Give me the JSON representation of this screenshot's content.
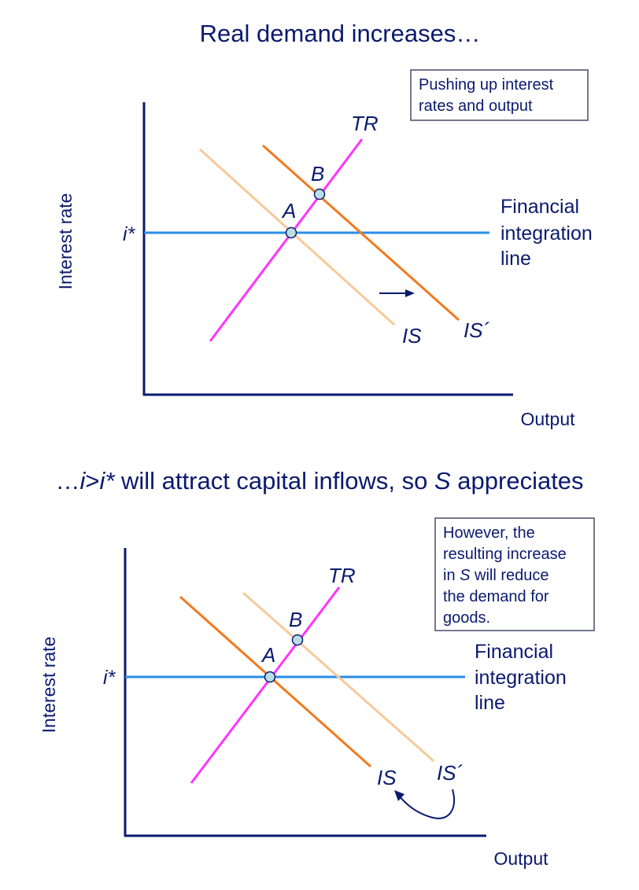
{
  "colors": {
    "text": "#0a1a6e",
    "axis": "#0a1a6e",
    "tr": "#ff33ff",
    "is_old": "#f7c99a",
    "is_new": "#f07a1e",
    "financial": "#2a8de8",
    "point_fill": "#b9dfe5",
    "note_border": "#4a4a6a"
  },
  "panel1": {
    "title": "Real demand increases…",
    "note": [
      "Pushing up interest",
      "rates and output"
    ],
    "ylabel": "Interest rate",
    "xlabel": "Output",
    "i_star": "i*",
    "tr_label": "TR",
    "is_label": "IS",
    "is_prime_label": "IS´",
    "point_a": "A",
    "point_b": "B",
    "financial_label": [
      "Financial",
      "integration",
      "line"
    ]
  },
  "panel2": {
    "title_parts": [
      "…",
      "i",
      ">",
      "i*",
      " will attract capital inflows, so ",
      "S",
      " appreciates"
    ],
    "note_lines": [
      [
        "However, the"
      ],
      [
        "resulting increase"
      ],
      [
        "in ",
        "S",
        " will reduce"
      ],
      [
        "the demand for"
      ],
      [
        "goods."
      ]
    ],
    "ylabel": "Interest rate",
    "xlabel": "Output",
    "i_star": "i*",
    "tr_label": "TR",
    "is_label": "IS",
    "is_prime_label": "IS´",
    "point_a": "A",
    "point_b": "B",
    "financial_label": [
      "Financial",
      "integration",
      "line"
    ]
  }
}
